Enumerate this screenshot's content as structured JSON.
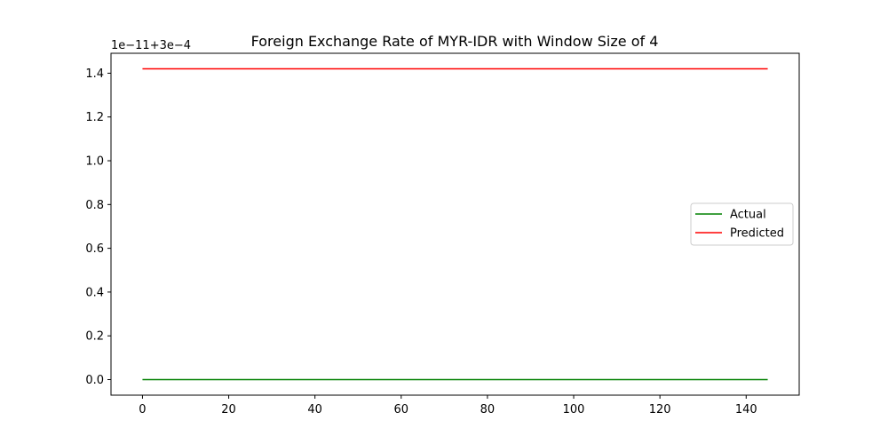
{
  "chart_data": {
    "type": "line",
    "title": "Foreign Exchange Rate of MYR-IDR with Window Size of 4",
    "xlabel": "",
    "ylabel": "",
    "offset_label": "1e−11+3e−4",
    "xlim": [
      -7.3,
      152.3
    ],
    "ylim": [
      -0.071,
      1.491
    ],
    "x_ticks": [
      0,
      20,
      40,
      60,
      80,
      100,
      120,
      140
    ],
    "x_tick_labels": [
      "0",
      "20",
      "40",
      "60",
      "80",
      "100",
      "120",
      "140"
    ],
    "y_ticks": [
      0.0,
      0.2,
      0.4,
      0.6,
      0.8,
      1.0,
      1.2,
      1.4
    ],
    "y_tick_labels": [
      "0.0",
      "0.2",
      "0.4",
      "0.6",
      "0.8",
      "1.0",
      "1.2",
      "1.4"
    ],
    "grid": false,
    "legend_position": "center-right",
    "series": [
      {
        "name": "Actual",
        "color": "#008000",
        "x_range": [
          0,
          145
        ],
        "constant_value": 0.0
      },
      {
        "name": "Predicted",
        "color": "#ff0000",
        "x_range": [
          0,
          145
        ],
        "constant_value": 1.42
      }
    ]
  }
}
